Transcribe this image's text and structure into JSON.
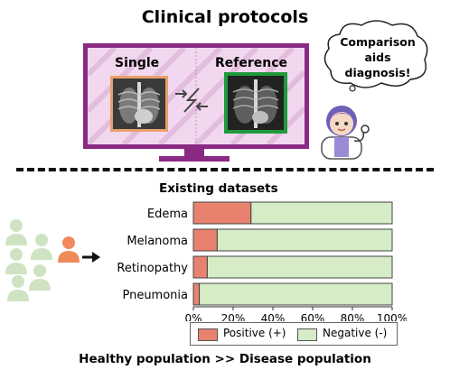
{
  "title": "Clinical protocols",
  "monitor": {
    "single_label": "Single",
    "reference_label": "Reference"
  },
  "speech_bubble": {
    "line1": "Comparison",
    "line2": "aids",
    "line3": "diagnosis!"
  },
  "datasets_title": "Existing datasets",
  "caption": "Healthy population >> Disease population",
  "colors": {
    "positive": "#e8826f",
    "negative": "#d5ecc6",
    "monitor": "#8a2b83",
    "single_frame": "#e8a06b",
    "reference_frame": "#1e9a3c",
    "healthy_person": "#cfe3c2",
    "disease_person": "#f08a5b"
  },
  "chart_data": {
    "type": "bar",
    "orientation": "horizontal",
    "stacked": true,
    "categories": [
      "Edema",
      "Melanoma",
      "Retinopathy",
      "Pneumonia"
    ],
    "series": [
      {
        "name": "Positive (+)",
        "values": [
          29,
          12,
          7,
          3
        ]
      },
      {
        "name": "Negative (-)",
        "values": [
          71,
          88,
          93,
          97
        ]
      }
    ],
    "x_ticks": [
      "0%",
      "20%",
      "40%",
      "60%",
      "80%",
      "100%"
    ],
    "xlim": [
      0,
      100
    ],
    "legend": "bottom"
  }
}
